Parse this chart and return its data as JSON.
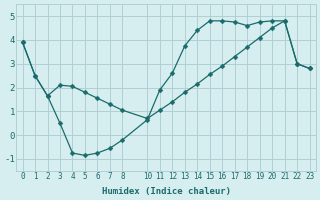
{
  "line1_x": [
    0,
    1,
    2,
    3,
    4,
    5,
    6,
    7,
    8,
    10,
    11,
    12,
    13,
    14,
    15,
    16,
    17,
    18,
    19,
    20,
    21,
    22,
    23
  ],
  "line1_y": [
    3.9,
    2.5,
    1.65,
    0.5,
    -0.75,
    -0.85,
    -0.75,
    -0.55,
    -0.2,
    0.65,
    1.9,
    2.6,
    3.75,
    4.4,
    4.8,
    4.8,
    4.75,
    4.6,
    4.75,
    4.8,
    4.8,
    3.0,
    2.8
  ],
  "line2_x": [
    0,
    1,
    2,
    3,
    4,
    5,
    6,
    7,
    8,
    10,
    11,
    12,
    13,
    14,
    15,
    16,
    17,
    18,
    19,
    20,
    21,
    22,
    23
  ],
  "line2_y": [
    3.9,
    2.5,
    1.65,
    2.1,
    2.05,
    1.8,
    1.55,
    1.3,
    1.05,
    0.7,
    1.05,
    1.4,
    1.8,
    2.15,
    2.55,
    2.9,
    3.3,
    3.7,
    4.1,
    4.5,
    4.8,
    3.0,
    2.8
  ],
  "bg_color": "#d7eef0",
  "grid_color": "#b0cfd4",
  "line_color": "#1a6b6b",
  "ylim": [
    -1.5,
    5.5
  ],
  "xlim": [
    -0.5,
    23.5
  ],
  "yticks": [
    -1,
    0,
    1,
    2,
    3,
    4,
    5
  ],
  "xticks": [
    0,
    1,
    2,
    3,
    4,
    5,
    6,
    7,
    8,
    10,
    11,
    12,
    13,
    14,
    15,
    16,
    17,
    18,
    19,
    20,
    21,
    22,
    23
  ],
  "xlabel": "Humidex (Indice chaleur)",
  "markersize": 2.5,
  "linewidth": 0.9,
  "tick_fontsize": 5.5,
  "label_fontsize": 6.5
}
